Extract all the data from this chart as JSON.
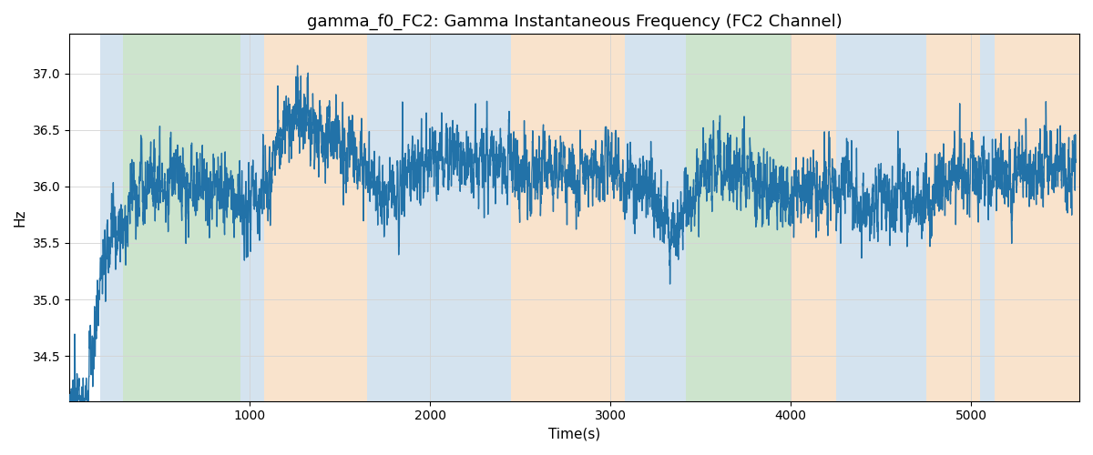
{
  "title": "gamma_f0_FC2: Gamma Instantaneous Frequency (FC2 Channel)",
  "xlabel": "Time(s)",
  "ylabel": "Hz",
  "xlim": [
    0,
    5600
  ],
  "ylim": [
    34.1,
    37.35
  ],
  "yticks": [
    34.5,
    35.0,
    35.5,
    36.0,
    36.5,
    37.0
  ],
  "xticks": [
    1000,
    2000,
    3000,
    4000,
    5000
  ],
  "line_color": "#2272a8",
  "line_width": 1.0,
  "bg_bands": [
    {
      "xmin": 170,
      "xmax": 300,
      "color": "#aac8e0",
      "alpha": 0.5
    },
    {
      "xmin": 300,
      "xmax": 950,
      "color": "#90c490",
      "alpha": 0.45
    },
    {
      "xmin": 950,
      "xmax": 1080,
      "color": "#aac8e0",
      "alpha": 0.5
    },
    {
      "xmin": 1080,
      "xmax": 1650,
      "color": "#f5c99a",
      "alpha": 0.5
    },
    {
      "xmin": 1650,
      "xmax": 2450,
      "color": "#aac8e0",
      "alpha": 0.5
    },
    {
      "xmin": 2450,
      "xmax": 3080,
      "color": "#f5c99a",
      "alpha": 0.5
    },
    {
      "xmin": 3080,
      "xmax": 3420,
      "color": "#aac8e0",
      "alpha": 0.5
    },
    {
      "xmin": 3420,
      "xmax": 4000,
      "color": "#90c490",
      "alpha": 0.45
    },
    {
      "xmin": 4000,
      "xmax": 4250,
      "color": "#f5c99a",
      "alpha": 0.5
    },
    {
      "xmin": 4250,
      "xmax": 4750,
      "color": "#aac8e0",
      "alpha": 0.5
    },
    {
      "xmin": 4750,
      "xmax": 5050,
      "color": "#f5c99a",
      "alpha": 0.5
    },
    {
      "xmin": 5050,
      "xmax": 5130,
      "color": "#aac8e0",
      "alpha": 0.5
    },
    {
      "xmin": 5130,
      "xmax": 5600,
      "color": "#f5c99a",
      "alpha": 0.5
    }
  ],
  "envelope_knots": [
    [
      0,
      34.15
    ],
    [
      100,
      34.15
    ],
    [
      200,
      35.4
    ],
    [
      350,
      35.9
    ],
    [
      500,
      36.05
    ],
    [
      700,
      36.0
    ],
    [
      950,
      35.9
    ],
    [
      1080,
      35.85
    ],
    [
      1200,
      36.55
    ],
    [
      1350,
      36.5
    ],
    [
      1500,
      36.35
    ],
    [
      1650,
      36.2
    ],
    [
      1750,
      35.85
    ],
    [
      1900,
      36.2
    ],
    [
      2100,
      36.3
    ],
    [
      2300,
      36.2
    ],
    [
      2450,
      36.15
    ],
    [
      2600,
      36.15
    ],
    [
      2800,
      36.1
    ],
    [
      3000,
      36.15
    ],
    [
      3080,
      36.05
    ],
    [
      3200,
      36.05
    ],
    [
      3350,
      35.6
    ],
    [
      3420,
      35.85
    ],
    [
      3550,
      36.15
    ],
    [
      3700,
      36.1
    ],
    [
      3900,
      36.0
    ],
    [
      4000,
      35.95
    ],
    [
      4100,
      36.0
    ],
    [
      4200,
      36.0
    ],
    [
      4250,
      35.95
    ],
    [
      4400,
      35.85
    ],
    [
      4600,
      35.9
    ],
    [
      4750,
      35.9
    ],
    [
      4900,
      36.1
    ],
    [
      5050,
      36.1
    ],
    [
      5130,
      36.05
    ],
    [
      5300,
      36.1
    ],
    [
      5500,
      36.2
    ],
    [
      5580,
      36.2
    ]
  ],
  "seed": 12345,
  "figsize": [
    12,
    5
  ],
  "dpi": 100,
  "title_fontsize": 13
}
